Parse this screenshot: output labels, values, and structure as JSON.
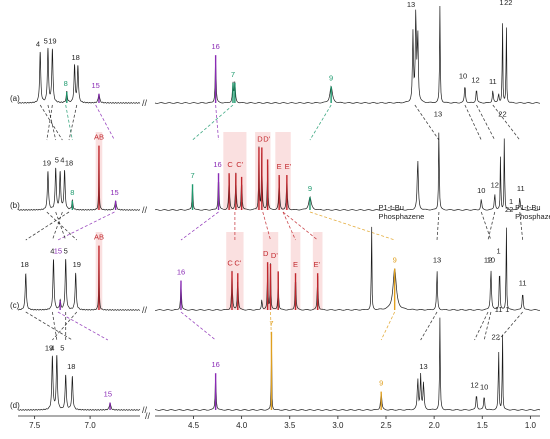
{
  "chart_data": {
    "type": "line",
    "xlabel": "",
    "ylabel": "",
    "x_axis": {
      "reversed": true,
      "ticks": [
        "7.5",
        "7.0",
        "4.5",
        "4.0",
        "3.5",
        "3.0",
        "2.5",
        "2.0",
        "1.5",
        "1.0"
      ],
      "ranges": [
        [
          7.65,
          6.55
        ],
        [
          4.9,
          0.9
        ]
      ]
    },
    "colors": {
      "black": "#222222",
      "purple": "#8a2bb5",
      "green": "#1e9a6e",
      "red": "#c1272d",
      "orange": "#e0a020",
      "pinkHighlight": "#f6c6c6"
    },
    "series": [
      {
        "name": "(a)",
        "peaks": [
          {
            "ppm": 7.45,
            "h": 55,
            "w": 0.012,
            "color": "black"
          },
          {
            "ppm": 7.38,
            "h": 58,
            "w": 0.012,
            "color": "black"
          },
          {
            "ppm": 7.34,
            "h": 58,
            "w": 0.012,
            "color": "black"
          },
          {
            "ppm": 7.21,
            "h": 12,
            "w": 0.012,
            "color": "green"
          },
          {
            "ppm": 7.14,
            "h": 40,
            "w": 0.012,
            "color": "black"
          },
          {
            "ppm": 7.11,
            "h": 40,
            "w": 0.012,
            "color": "black"
          },
          {
            "ppm": 6.92,
            "h": 10,
            "w": 0.015,
            "color": "purple"
          },
          {
            "ppm": 4.27,
            "h": 52,
            "w": 0.01,
            "color": "purple"
          },
          {
            "ppm": 4.09,
            "h": 22,
            "w": 0.012,
            "color": "green"
          },
          {
            "ppm": 4.07,
            "h": 22,
            "w": 0.012,
            "color": "green"
          },
          {
            "ppm": 3.07,
            "h": 18,
            "w": 0.03,
            "color": "green"
          },
          {
            "ppm": 2.22,
            "h": 75,
            "w": 0.012,
            "color": "black"
          },
          {
            "ppm": 2.19,
            "h": 98,
            "w": 0.012,
            "color": "black"
          },
          {
            "ppm": 2.17,
            "h": 75,
            "w": 0.012,
            "color": "black"
          },
          {
            "ppm": 1.94,
            "h": 105,
            "w": 0.008,
            "color": "black"
          },
          {
            "ppm": 1.68,
            "h": 20,
            "w": 0.012,
            "color": "black"
          },
          {
            "ppm": 1.56,
            "h": 16,
            "w": 0.012,
            "color": "black"
          },
          {
            "ppm": 1.39,
            "h": 14,
            "w": 0.012,
            "color": "black"
          },
          {
            "ppm": 1.33,
            "h": 10,
            "w": 0.012,
            "color": "black"
          },
          {
            "ppm": 1.29,
            "h": 105,
            "w": 0.006,
            "color": "black"
          },
          {
            "ppm": 1.25,
            "h": 100,
            "w": 0.006,
            "color": "black"
          }
        ]
      },
      {
        "name": "(b)",
        "peaks": [
          {
            "ppm": 7.38,
            "h": 42,
            "w": 0.012,
            "color": "black"
          },
          {
            "ppm": 7.31,
            "h": 45,
            "w": 0.012,
            "color": "black"
          },
          {
            "ppm": 7.27,
            "h": 40,
            "w": 0.012,
            "color": "black"
          },
          {
            "ppm": 7.23,
            "h": 42,
            "w": 0.012,
            "color": "black"
          },
          {
            "ppm": 7.16,
            "h": 10,
            "w": 0.012,
            "color": "green"
          },
          {
            "ppm": 6.92,
            "h": 70,
            "w": 0.006,
            "color": "red"
          },
          {
            "ppm": 6.77,
            "h": 10,
            "w": 0.015,
            "color": "purple"
          },
          {
            "ppm": 4.51,
            "h": 28,
            "w": 0.01,
            "color": "green"
          },
          {
            "ppm": 4.24,
            "h": 40,
            "w": 0.01,
            "color": "purple"
          },
          {
            "ppm": 4.13,
            "h": 40,
            "w": 0.01,
            "color": "red"
          },
          {
            "ppm": 4.06,
            "h": 40,
            "w": 0.01,
            "color": "red"
          },
          {
            "ppm": 4.0,
            "h": 36,
            "w": 0.01,
            "color": "red"
          },
          {
            "ppm": 3.82,
            "h": 68,
            "w": 0.008,
            "color": "red"
          },
          {
            "ppm": 3.79,
            "h": 68,
            "w": 0.008,
            "color": "red"
          },
          {
            "ppm": 3.73,
            "h": 55,
            "w": 0.008,
            "color": "red"
          },
          {
            "ppm": 3.61,
            "h": 38,
            "w": 0.01,
            "color": "red"
          },
          {
            "ppm": 3.53,
            "h": 38,
            "w": 0.01,
            "color": "red"
          },
          {
            "ppm": 3.29,
            "h": 14,
            "w": 0.03,
            "color": "green"
          },
          {
            "ppm": 2.17,
            "h": 55,
            "w": 0.014,
            "color": "black"
          },
          {
            "ppm": 1.95,
            "h": 95,
            "w": 0.008,
            "color": "black"
          },
          {
            "ppm": 1.51,
            "h": 12,
            "w": 0.012,
            "color": "black"
          },
          {
            "ppm": 1.37,
            "h": 18,
            "w": 0.012,
            "color": "black"
          },
          {
            "ppm": 1.31,
            "h": 70,
            "w": 0.006,
            "color": "black"
          },
          {
            "ppm": 1.27,
            "h": 95,
            "w": 0.006,
            "color": "black"
          },
          {
            "ppm": 1.11,
            "h": 14,
            "w": 0.012,
            "color": "black"
          }
        ]
      },
      {
        "name": "(c)",
        "peaks": [
          {
            "ppm": 7.58,
            "h": 40,
            "w": 0.012,
            "color": "black"
          },
          {
            "ppm": 7.33,
            "h": 55,
            "w": 0.012,
            "color": "black"
          },
          {
            "ppm": 7.22,
            "h": 55,
            "w": 0.012,
            "color": "black"
          },
          {
            "ppm": 7.13,
            "h": 40,
            "w": 0.012,
            "color": "black"
          },
          {
            "ppm": 7.27,
            "h": 10,
            "w": 0.012,
            "color": "purple"
          },
          {
            "ppm": 6.92,
            "h": 70,
            "w": 0.006,
            "color": "red"
          },
          {
            "ppm": 4.63,
            "h": 32,
            "w": 0.01,
            "color": "purple"
          },
          {
            "ppm": 4.1,
            "h": 42,
            "w": 0.01,
            "color": "red"
          },
          {
            "ppm": 4.04,
            "h": 40,
            "w": 0.01,
            "color": "red"
          },
          {
            "ppm": 3.73,
            "h": 52,
            "w": 0.008,
            "color": "red"
          },
          {
            "ppm": 3.7,
            "h": 50,
            "w": 0.008,
            "color": "red"
          },
          {
            "ppm": 3.62,
            "h": 42,
            "w": 0.008,
            "color": "red"
          },
          {
            "ppm": 3.44,
            "h": 40,
            "w": 0.01,
            "color": "red"
          },
          {
            "ppm": 3.21,
            "h": 40,
            "w": 0.01,
            "color": "red"
          },
          {
            "ppm": 3.79,
            "h": 12,
            "w": 0.01,
            "color": "black"
          },
          {
            "ppm": 2.65,
            "h": 110,
            "w": 0.006,
            "color": "black"
          },
          {
            "ppm": 2.41,
            "h": 45,
            "w": 0.04,
            "color": "orange"
          },
          {
            "ppm": 1.97,
            "h": 45,
            "w": 0.01,
            "color": "black"
          },
          {
            "ppm": 1.41,
            "h": 45,
            "w": 0.012,
            "color": "black"
          },
          {
            "ppm": 1.32,
            "h": 55,
            "w": 0.008,
            "color": "black"
          },
          {
            "ppm": 1.25,
            "h": 110,
            "w": 0.006,
            "color": "black"
          },
          {
            "ppm": 1.08,
            "h": 20,
            "w": 0.012,
            "color": "black"
          }
        ]
      },
      {
        "name": "(d)",
        "peaks": [
          {
            "ppm": 7.34,
            "h": 58,
            "w": 0.012,
            "color": "black"
          },
          {
            "ppm": 7.3,
            "h": 58,
            "w": 0.012,
            "color": "black"
          },
          {
            "ppm": 7.22,
            "h": 38,
            "w": 0.012,
            "color": "black"
          },
          {
            "ppm": 7.16,
            "h": 36,
            "w": 0.012,
            "color": "black"
          },
          {
            "ppm": 6.82,
            "h": 8,
            "w": 0.015,
            "color": "purple"
          },
          {
            "ppm": 4.27,
            "h": 40,
            "w": 0.01,
            "color": "purple"
          },
          {
            "ppm": 3.69,
            "h": 85,
            "w": 0.006,
            "color": "orange"
          },
          {
            "ppm": 2.55,
            "h": 20,
            "w": 0.014,
            "color": "orange"
          },
          {
            "ppm": 2.17,
            "h": 34,
            "w": 0.012,
            "color": "black"
          },
          {
            "ppm": 2.14,
            "h": 38,
            "w": 0.012,
            "color": "black"
          },
          {
            "ppm": 2.11,
            "h": 30,
            "w": 0.012,
            "color": "black"
          },
          {
            "ppm": 1.94,
            "h": 100,
            "w": 0.008,
            "color": "black"
          },
          {
            "ppm": 1.56,
            "h": 18,
            "w": 0.012,
            "color": "black"
          },
          {
            "ppm": 1.48,
            "h": 16,
            "w": 0.012,
            "color": "black"
          },
          {
            "ppm": 1.33,
            "h": 70,
            "w": 0.008,
            "color": "black"
          },
          {
            "ppm": 1.29,
            "h": 100,
            "w": 0.006,
            "color": "black"
          }
        ]
      }
    ],
    "annotations": [
      {
        "trace": 0,
        "ppm": 7.47,
        "text": "4",
        "color": "black"
      },
      {
        "trace": 0,
        "ppm": 7.4,
        "text": "5",
        "color": "black"
      },
      {
        "trace": 0,
        "ppm": 7.34,
        "text": "19",
        "color": "black"
      },
      {
        "trace": 0,
        "ppm": 7.13,
        "text": "18",
        "color": "black"
      },
      {
        "trace": 0,
        "ppm": 7.22,
        "text": "8",
        "color": "green"
      },
      {
        "trace": 0,
        "ppm": 6.95,
        "text": "15",
        "color": "purple"
      },
      {
        "trace": 0,
        "ppm": 4.27,
        "text": "16",
        "color": "purple"
      },
      {
        "trace": 0,
        "ppm": 4.09,
        "text": "7",
        "color": "green"
      },
      {
        "trace": 0,
        "ppm": 3.07,
        "text": "9",
        "color": "green"
      },
      {
        "trace": 0,
        "ppm": 2.24,
        "text": "13",
        "color": "black"
      },
      {
        "trace": 0,
        "ppm": 1.7,
        "text": "10",
        "color": "black"
      },
      {
        "trace": 0,
        "ppm": 1.57,
        "text": "12",
        "color": "black"
      },
      {
        "trace": 0,
        "ppm": 1.39,
        "text": "11",
        "color": "black"
      },
      {
        "trace": 0,
        "ppm": 1.3,
        "text": "1",
        "color": "black"
      },
      {
        "trace": 0,
        "ppm": 1.23,
        "text": "22",
        "color": "black"
      },
      {
        "trace": 1,
        "ppm": 6.92,
        "text": "AB",
        "color": "red"
      },
      {
        "trace": 1,
        "ppm": 7.39,
        "text": "19",
        "color": "black"
      },
      {
        "trace": 1,
        "ppm": 7.3,
        "text": "5",
        "color": "black"
      },
      {
        "trace": 1,
        "ppm": 7.25,
        "text": "4",
        "color": "black"
      },
      {
        "trace": 1,
        "ppm": 7.19,
        "text": "18",
        "color": "black"
      },
      {
        "trace": 1,
        "ppm": 7.16,
        "text": "8",
        "color": "green"
      },
      {
        "trace": 1,
        "ppm": 6.78,
        "text": "15",
        "color": "purple"
      },
      {
        "trace": 1,
        "ppm": 4.51,
        "text": "7",
        "color": "green"
      },
      {
        "trace": 1,
        "ppm": 4.25,
        "text": "16",
        "color": "purple"
      },
      {
        "trace": 1,
        "ppm": 4.12,
        "text": "C",
        "color": "red"
      },
      {
        "trace": 1,
        "ppm": 4.02,
        "text": "C'",
        "color": "red"
      },
      {
        "trace": 1,
        "ppm": 3.81,
        "text": "D",
        "color": "red"
      },
      {
        "trace": 1,
        "ppm": 3.74,
        "text": "D'",
        "color": "red"
      },
      {
        "trace": 1,
        "ppm": 3.61,
        "text": "E",
        "color": "red"
      },
      {
        "trace": 1,
        "ppm": 3.52,
        "text": "E'",
        "color": "red"
      },
      {
        "trace": 1,
        "ppm": 3.29,
        "text": "9",
        "color": "green"
      },
      {
        "trace": 1,
        "ppm": 1.96,
        "text": "13",
        "color": "black"
      },
      {
        "trace": 1,
        "ppm": 1.51,
        "text": "10",
        "color": "black"
      },
      {
        "trace": 1,
        "ppm": 1.37,
        "text": "12",
        "color": "black"
      },
      {
        "trace": 1,
        "ppm": 1.29,
        "text": "22",
        "color": "black"
      },
      {
        "trace": 1,
        "ppm": 1.2,
        "text": "1",
        "color": "black"
      },
      {
        "trace": 1,
        "ppm": 1.1,
        "text": "11",
        "color": "black"
      },
      {
        "trace": 2,
        "ppm": 6.92,
        "text": "AB",
        "color": "red"
      },
      {
        "trace": 2,
        "ppm": 7.59,
        "text": "18",
        "color": "black"
      },
      {
        "trace": 2,
        "ppm": 7.34,
        "text": "4",
        "color": "black"
      },
      {
        "trace": 2,
        "ppm": 7.22,
        "text": "5",
        "color": "black"
      },
      {
        "trace": 2,
        "ppm": 7.12,
        "text": "19",
        "color": "black"
      },
      {
        "trace": 2,
        "ppm": 7.29,
        "text": "15",
        "color": "purple"
      },
      {
        "trace": 2,
        "ppm": 4.63,
        "text": "16",
        "color": "purple"
      },
      {
        "trace": 2,
        "ppm": 4.12,
        "text": "C",
        "color": "red"
      },
      {
        "trace": 2,
        "ppm": 4.04,
        "text": "C'",
        "color": "red"
      },
      {
        "trace": 2,
        "ppm": 3.75,
        "text": "D",
        "color": "red"
      },
      {
        "trace": 2,
        "ppm": 3.66,
        "text": "D'",
        "color": "red"
      },
      {
        "trace": 2,
        "ppm": 3.44,
        "text": "E",
        "color": "red"
      },
      {
        "trace": 2,
        "ppm": 3.22,
        "text": "E'",
        "color": "red"
      },
      {
        "trace": 2,
        "ppm": 2.41,
        "text": "9",
        "color": "orange"
      },
      {
        "trace": 2,
        "ppm": 1.97,
        "text": "13",
        "color": "black"
      },
      {
        "trace": 2,
        "ppm": 1.41,
        "text": "10",
        "color": "black"
      },
      {
        "trace": 2,
        "ppm": 1.44,
        "text": "12",
        "color": "black"
      },
      {
        "trace": 2,
        "ppm": 1.08,
        "text": "11",
        "color": "black"
      },
      {
        "trace": 2,
        "ppm": 1.33,
        "text": "1",
        "color": "black"
      },
      {
        "trace": 2,
        "ppm": 1.22,
        "text": "22",
        "color": "black"
      },
      {
        "trace": 3,
        "ppm": 7.34,
        "text": "4",
        "color": "black"
      },
      {
        "trace": 3,
        "ppm": 7.37,
        "text": "19",
        "color": "black"
      },
      {
        "trace": 3,
        "ppm": 7.25,
        "text": "5",
        "color": "black"
      },
      {
        "trace": 3,
        "ppm": 7.17,
        "text": "18",
        "color": "black"
      },
      {
        "trace": 3,
        "ppm": 6.84,
        "text": "15",
        "color": "purple"
      },
      {
        "trace": 3,
        "ppm": 4.27,
        "text": "16",
        "color": "purple"
      },
      {
        "trace": 3,
        "ppm": 3.69,
        "text": "7",
        "color": "orange"
      },
      {
        "trace": 3,
        "ppm": 2.55,
        "text": "9",
        "color": "orange"
      },
      {
        "trace": 3,
        "ppm": 2.11,
        "text": "13",
        "color": "black"
      },
      {
        "trace": 3,
        "ppm": 1.58,
        "text": "12",
        "color": "black"
      },
      {
        "trace": 3,
        "ppm": 1.48,
        "text": "10",
        "color": "black"
      },
      {
        "trace": 3,
        "ppm": 1.36,
        "text": "22",
        "color": "black"
      },
      {
        "trace": 3,
        "ppm": 1.24,
        "text": "1",
        "color": "black"
      },
      {
        "trace": 3,
        "ppm": 1.33,
        "text": "11",
        "color": "black"
      }
    ],
    "side_labels": [
      {
        "trace": 2,
        "lines": [
          "P1-t-Bu",
          "Phosphazene"
        ],
        "ppm": 2.62
      },
      {
        "trace": 2,
        "lines": [
          "P1-t-Bu",
          "Phosphazene"
        ],
        "ppm": 1.2
      }
    ]
  }
}
